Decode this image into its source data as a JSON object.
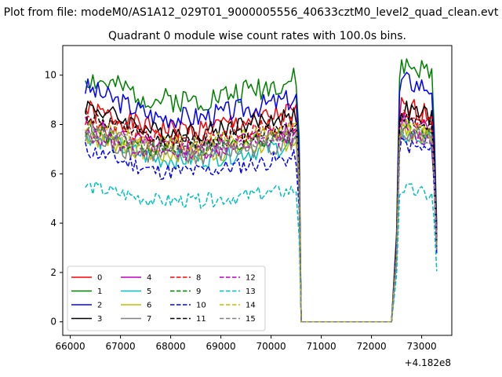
{
  "figure": {
    "suptitle": "Plot from file: modeM0/AS1A12_029T01_9000005556_40633cztM0_level2_quad_clean.evt",
    "title": "Quadrant 0 module wise count rates with 100.0s bins.",
    "x_offset_label": "+4.182e8"
  },
  "chart_data": {
    "type": "line",
    "title": "Quadrant 0 module wise count rates with 100.0s bins.",
    "xlabel": "",
    "ylabel": "",
    "xlim": [
      65850,
      73600
    ],
    "ylim": [
      -0.55,
      11.2
    ],
    "x_ticks": [
      66000,
      67000,
      68000,
      69000,
      70000,
      71000,
      72000,
      73000
    ],
    "y_ticks": [
      0,
      2,
      4,
      6,
      8,
      10
    ],
    "x_offset": "+4.182e8",
    "grid": false,
    "legend": {
      "placement": "lower-left",
      "columns": 4
    },
    "gap": {
      "x": [
        70600,
        72400
      ],
      "value": 0
    },
    "series": [
      {
        "name": "0",
        "color": "#ff0000",
        "dash": "solid",
        "base": 7.8,
        "amp": 0.45,
        "early": 8.6,
        "after": 8.7,
        "seed": 1
      },
      {
        "name": "1",
        "color": "#008000",
        "dash": "solid",
        "base": 9.0,
        "amp": 0.5,
        "early": 9.9,
        "after": 10.4,
        "seed": 2
      },
      {
        "name": "2",
        "color": "#0000ff",
        "dash": "solid",
        "base": 8.3,
        "amp": 0.45,
        "early": 9.5,
        "after": 9.8,
        "seed": 3
      },
      {
        "name": "3",
        "color": "#000000",
        "dash": "solid",
        "base": 7.7,
        "amp": 0.4,
        "early": 8.8,
        "after": 8.6,
        "seed": 4
      },
      {
        "name": "4",
        "color": "#bf00bf",
        "dash": "solid",
        "base": 7.1,
        "amp": 0.4,
        "early": 8.0,
        "after": 8.3,
        "seed": 5
      },
      {
        "name": "5",
        "color": "#00bfbf",
        "dash": "solid",
        "base": 6.6,
        "amp": 0.4,
        "early": 7.6,
        "after": 7.6,
        "seed": 6
      },
      {
        "name": "6",
        "color": "#bfbf00",
        "dash": "solid",
        "base": 6.8,
        "amp": 0.45,
        "early": 7.6,
        "after": 7.8,
        "seed": 7
      },
      {
        "name": "7",
        "color": "#808080",
        "dash": "solid",
        "base": 6.7,
        "amp": 0.4,
        "early": 7.4,
        "after": 7.6,
        "seed": 8
      },
      {
        "name": "8",
        "color": "#ff0000",
        "dash": "dashed",
        "base": 7.4,
        "amp": 0.4,
        "early": 8.2,
        "after": 8.4,
        "seed": 9
      },
      {
        "name": "9",
        "color": "#008000",
        "dash": "dashed",
        "base": 7.0,
        "amp": 0.35,
        "early": 7.8,
        "after": 8.0,
        "seed": 10
      },
      {
        "name": "10",
        "color": "#0000ff",
        "dash": "dashed",
        "base": 6.1,
        "amp": 0.35,
        "early": 7.0,
        "after": 7.2,
        "seed": 11
      },
      {
        "name": "11",
        "color": "#000000",
        "dash": "dashed",
        "base": 7.3,
        "amp": 0.35,
        "early": 8.4,
        "after": 8.3,
        "seed": 12
      },
      {
        "name": "12",
        "color": "#bf00bf",
        "dash": "dashed",
        "base": 6.9,
        "amp": 0.35,
        "early": 7.6,
        "after": 7.7,
        "seed": 13
      },
      {
        "name": "13",
        "color": "#00bfbf",
        "dash": "dashed",
        "base": 4.9,
        "amp": 0.3,
        "early": 5.5,
        "after": 5.4,
        "seed": 14
      },
      {
        "name": "14",
        "color": "#bfbf00",
        "dash": "dashed",
        "base": 7.2,
        "amp": 0.35,
        "early": 7.9,
        "after": 7.9,
        "seed": 15
      },
      {
        "name": "15",
        "color": "#808080",
        "dash": "dashed",
        "base": 7.0,
        "amp": 0.35,
        "early": 7.8,
        "after": 7.7,
        "seed": 16
      }
    ]
  }
}
